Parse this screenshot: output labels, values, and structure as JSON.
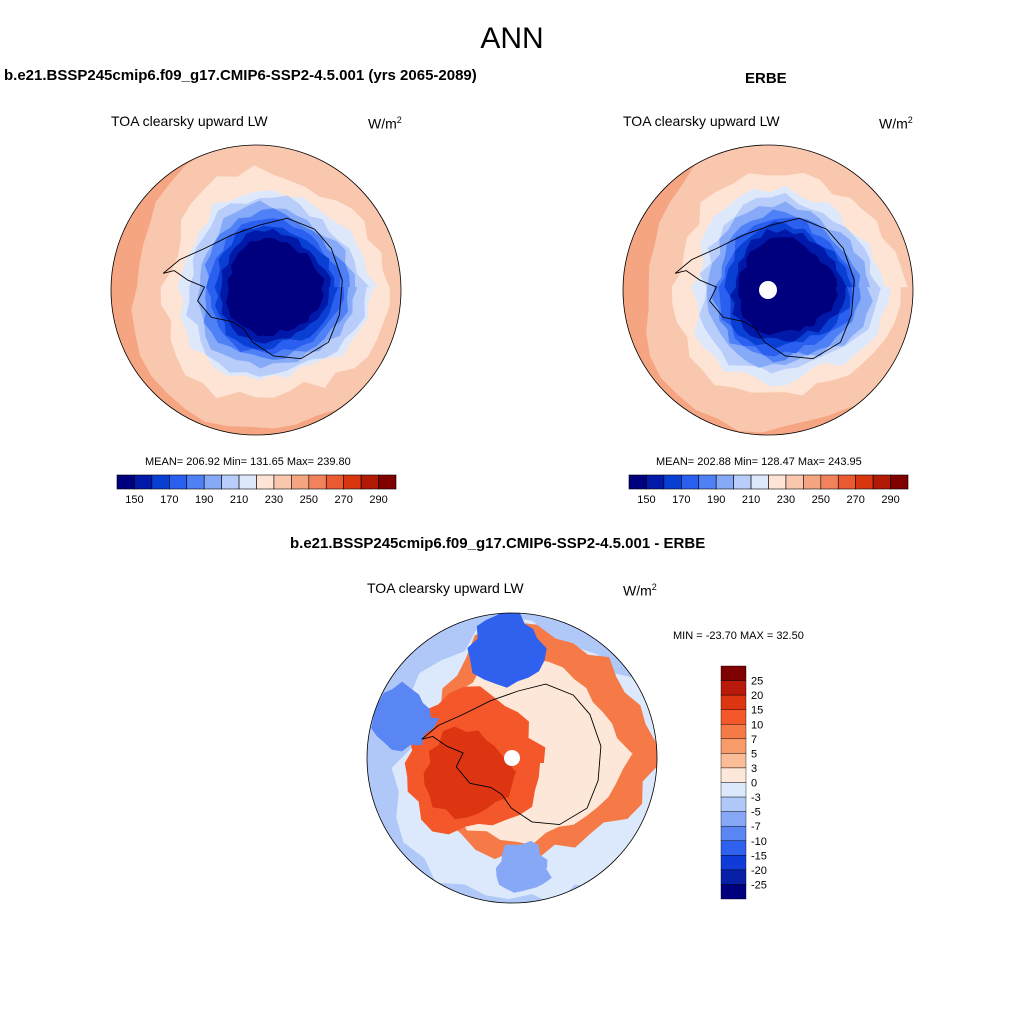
{
  "figure": {
    "title": "ANN",
    "units_base": "W/m",
    "units_exp": "2"
  },
  "chart_data": [
    {
      "type": "heatmap",
      "projection": "south-polar-stereographic",
      "title": "b.e21.BSSP245cmip6.f09_g17.CMIP6-SSP2-4.5.001 (yrs 2065-2089)",
      "variable": "TOA clearsky upward LW",
      "stats_text": "MEAN= 206.92  Min= 131.65  Max= 239.80",
      "mean": 206.92,
      "min": 131.65,
      "max": 239.8,
      "levels": [
        145,
        150,
        160,
        170,
        180,
        190,
        200,
        210,
        220,
        230,
        240,
        250,
        260,
        270,
        280,
        290
      ],
      "tick_labels": [
        "150",
        "170",
        "190",
        "210",
        "230",
        "250",
        "270",
        "290"
      ],
      "colors": [
        "#00007f",
        "#0019a8",
        "#0a3fd4",
        "#2a5ff0",
        "#4f80f6",
        "#86aaf8",
        "#b8cdf9",
        "#dde8fb",
        "#fde4d4",
        "#f9c7ad",
        "#f6a583",
        "#f2825c",
        "#ec5a31",
        "#d9360f",
        "#b31a05",
        "#800000"
      ]
    },
    {
      "type": "heatmap",
      "projection": "south-polar-stereographic",
      "title": "ERBE",
      "variable": "TOA clearsky upward LW",
      "stats_text": "MEAN= 202.88  Min= 128.47  Max= 243.95",
      "mean": 202.88,
      "min": 128.47,
      "max": 243.95,
      "levels": [
        145,
        150,
        160,
        170,
        180,
        190,
        200,
        210,
        220,
        230,
        240,
        250,
        260,
        270,
        280,
        290
      ],
      "tick_labels": [
        "150",
        "170",
        "190",
        "210",
        "230",
        "250",
        "270",
        "290"
      ],
      "colors": [
        "#00007f",
        "#0019a8",
        "#0a3fd4",
        "#2a5ff0",
        "#4f80f6",
        "#86aaf8",
        "#b8cdf9",
        "#dde8fb",
        "#fde4d4",
        "#f9c7ad",
        "#f6a583",
        "#f2825c",
        "#ec5a31",
        "#d9360f",
        "#b31a05",
        "#800000"
      ]
    },
    {
      "type": "heatmap",
      "projection": "south-polar-stereographic",
      "title": "b.e21.BSSP245cmip6.f09_g17.CMIP6-SSP2-4.5.001 - ERBE",
      "variable": "TOA clearsky upward LW",
      "stats_text": "MIN = -23.70 MAX =  32.50",
      "min": -23.7,
      "max": 32.5,
      "levels": [
        -25,
        -20,
        -15,
        -10,
        -7,
        -5,
        -3,
        0,
        3,
        5,
        7,
        10,
        15,
        20,
        25
      ],
      "tick_labels": [
        "25",
        "20",
        "15",
        "10",
        "7",
        "5",
        "3",
        "0",
        "-3",
        "-5",
        "-7",
        "-10",
        "-15",
        "-20",
        "-25"
      ],
      "colors": [
        "#7f0000",
        "#b8190a",
        "#dd3512",
        "#f4582a",
        "#f57a48",
        "#f89b6b",
        "#fbbd97",
        "#fde7d8",
        "#dce8fb",
        "#b0c8f8",
        "#86a8f6",
        "#5a86f3",
        "#2f60ee",
        "#0f3cd8",
        "#0820a8",
        "#00007f"
      ]
    }
  ]
}
